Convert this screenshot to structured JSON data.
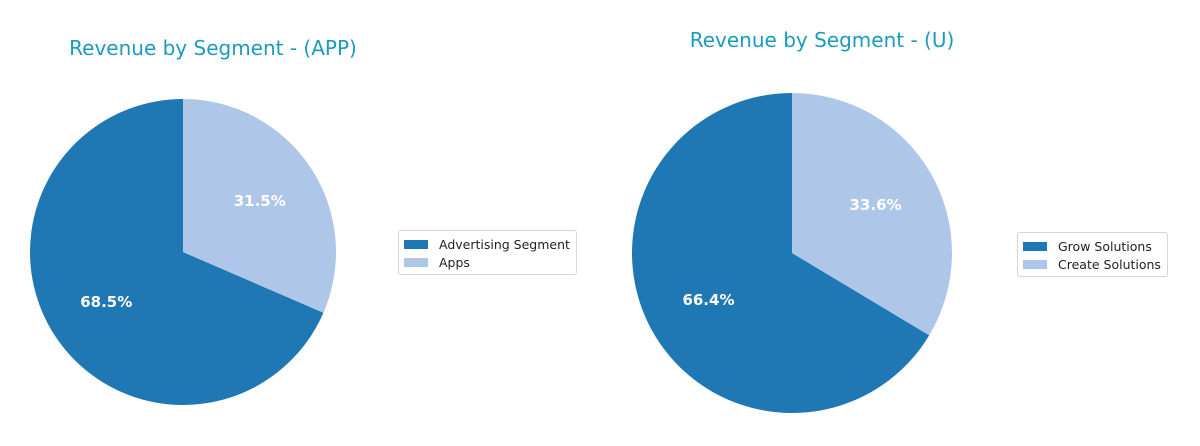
{
  "colors": {
    "title": "#1a9bbf",
    "slice_dark": "#1f77b4",
    "slice_light": "#aec7e8",
    "pct_text": "#ffffff"
  },
  "chart_data": [
    {
      "type": "pie",
      "title": "Revenue by Segment - (APP)",
      "slices": [
        {
          "label": "Advertising Segment",
          "value": 68.5,
          "display": "68.5%",
          "color": "#1f77b4"
        },
        {
          "label": "Apps",
          "value": 31.5,
          "display": "31.5%",
          "color": "#aec7e8"
        }
      ],
      "start_angle": 90,
      "direction": "counterclockwise",
      "legend_position": "right"
    },
    {
      "type": "pie",
      "title": "Revenue by Segment - (U)",
      "slices": [
        {
          "label": "Grow Solutions",
          "value": 66.4,
          "display": "66.4%",
          "color": "#1f77b4"
        },
        {
          "label": "Create Solutions",
          "value": 33.6,
          "display": "33.6%",
          "color": "#aec7e8"
        }
      ],
      "start_angle": 90,
      "direction": "counterclockwise",
      "legend_position": "right"
    }
  ]
}
